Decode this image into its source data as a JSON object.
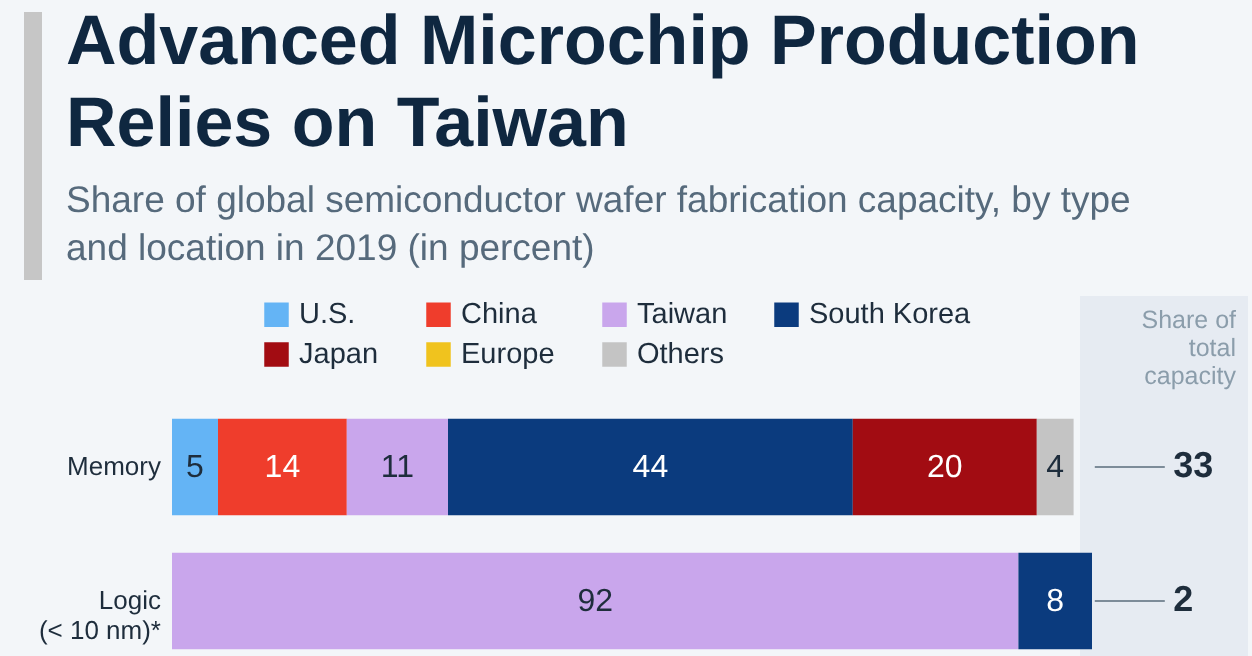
{
  "chart_data": {
    "type": "bar",
    "title": "Advanced Microchip Production Relies on Taiwan",
    "subtitle": "Share of global semiconductor wafer fabrication capacity, by type and location in 2019 (in percent)",
    "categories": [
      "Memory",
      "Logic\n(< 10 nm)*"
    ],
    "orientation": "horizontal",
    "stacked": true,
    "xlim": [
      0,
      100
    ],
    "tick_labels": "y",
    "legend": "top",
    "data_labels": true,
    "series": [
      {
        "name": "U.S.",
        "color": "#64b4f5",
        "values": [
          5,
          null
        ]
      },
      {
        "name": "China",
        "color": "#ef3d2c",
        "values": [
          14,
          null
        ]
      },
      {
        "name": "Taiwan",
        "color": "#c9a6ec",
        "values": [
          11,
          92
        ]
      },
      {
        "name": "South Korea",
        "color": "#0b3b7e",
        "values": [
          44,
          8
        ]
      },
      {
        "name": "Japan",
        "color": "#a20c12",
        "values": [
          20,
          null
        ]
      },
      {
        "name": "Europe",
        "color": "#f0c31e",
        "values": [
          null,
          null
        ]
      },
      {
        "name": "Others",
        "color": "#c4c4c4",
        "values": [
          4,
          null
        ]
      }
    ],
    "annotations": [
      "Share of total capacity",
      "33",
      "2"
    ]
  }
}
